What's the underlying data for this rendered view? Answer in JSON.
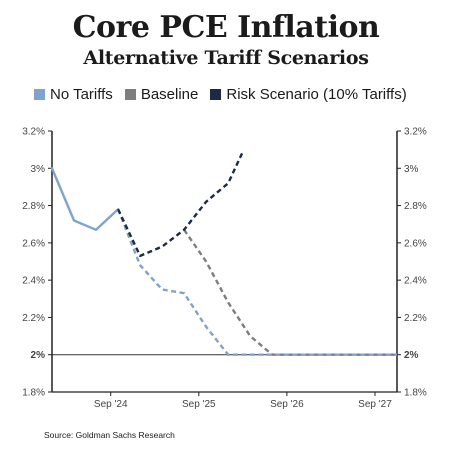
{
  "title": "Core PCE Inflation",
  "subtitle": "Alternative Tariff Scenarios",
  "source": "Source: Goldman Sachs Research",
  "chart_data": {
    "type": "line",
    "title": "Core PCE Inflation",
    "subtitle": "Alternative Tariff Scenarios",
    "xlabel": "",
    "ylabel": "",
    "x_tick_labels": [
      "Sep '24",
      "Sep '25",
      "Sep '26",
      "Sep '27"
    ],
    "x_tick_dates": [
      "2024-09",
      "2025-09",
      "2026-09",
      "2027-09"
    ],
    "xlim": [
      "2024-01",
      "2027-12"
    ],
    "ylim": [
      1.8,
      3.2
    ],
    "y_ticks": [
      1.8,
      2.0,
      2.2,
      2.4,
      2.6,
      2.8,
      3.0,
      3.2
    ],
    "y_tick_labels": [
      "1.8%",
      "2%",
      "2.2%",
      "2.4%",
      "2.6%",
      "2.8%",
      "3%",
      "3.2%"
    ],
    "y_tick_labels_right": [
      "1.8%",
      "2%",
      "2.2%",
      "2.4%",
      "2.6%",
      "2.8%",
      "3%",
      "3.2%"
    ],
    "reference_line": 2.0,
    "grid": false,
    "legend_position": "top",
    "series": [
      {
        "name": "No Tariffs",
        "color": "#7fa3cf",
        "style": "solid-then-dashed",
        "points": [
          {
            "x": "2024-01",
            "y": 3.0
          },
          {
            "x": "2024-04",
            "y": 2.72
          },
          {
            "x": "2024-07",
            "y": 2.67
          },
          {
            "x": "2024-10",
            "y": 2.78
          },
          {
            "x": "2025-01",
            "y": 2.48
          },
          {
            "x": "2025-04",
            "y": 2.35
          },
          {
            "x": "2025-07",
            "y": 2.33
          },
          {
            "x": "2025-10",
            "y": 2.15
          },
          {
            "x": "2026-01",
            "y": 2.0
          },
          {
            "x": "2027-12",
            "y": 2.0
          }
        ],
        "dashed_from": "2024-10"
      },
      {
        "name": "Baseline",
        "color": "#7d7d7d",
        "style": "dashed",
        "points": [
          {
            "x": "2025-07",
            "y": 2.67
          },
          {
            "x": "2025-10",
            "y": 2.5
          },
          {
            "x": "2026-01",
            "y": 2.28
          },
          {
            "x": "2026-04",
            "y": 2.1
          },
          {
            "x": "2026-07",
            "y": 2.0
          },
          {
            "x": "2027-12",
            "y": 2.0
          }
        ]
      },
      {
        "name": "Risk Scenario (10% Tariffs)",
        "color": "#1c2b45",
        "style": "dashed",
        "points": [
          {
            "x": "2024-10",
            "y": 2.78
          },
          {
            "x": "2025-01",
            "y": 2.53
          },
          {
            "x": "2025-04",
            "y": 2.58
          },
          {
            "x": "2025-07",
            "y": 2.67
          },
          {
            "x": "2025-10",
            "y": 2.82
          },
          {
            "x": "2026-01",
            "y": 2.92
          },
          {
            "x": "2026-03",
            "y": 3.09
          }
        ]
      }
    ]
  }
}
